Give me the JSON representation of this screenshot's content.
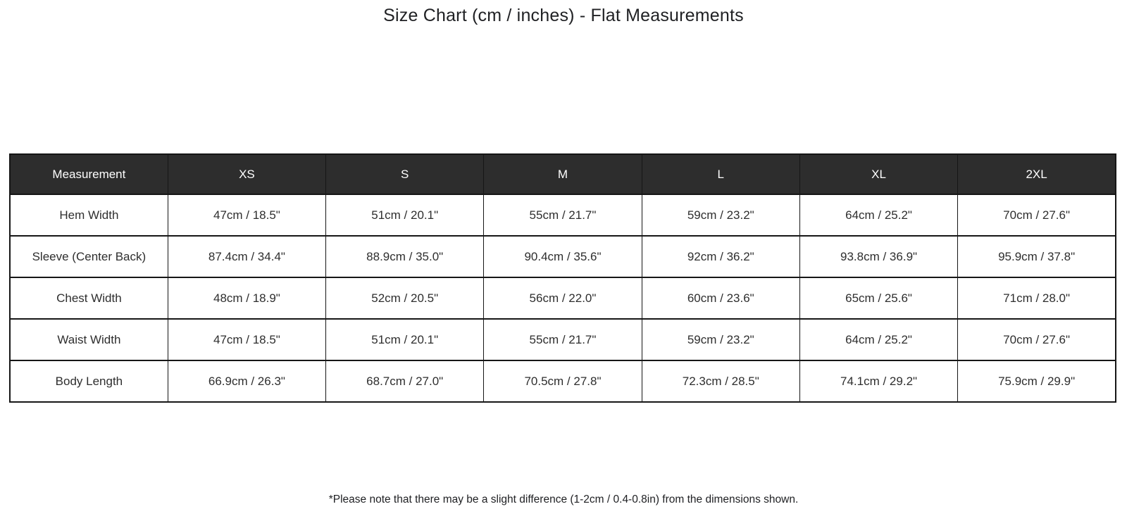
{
  "page": {
    "title": "Size Chart (cm / inches) - Flat Measurements",
    "footnote": "*Please note that there may be a slight difference (1-2cm / 0.4-0.8in) from the dimensions shown."
  },
  "colors": {
    "background": "#ffffff",
    "header_bg": "#2d2d2d",
    "header_text": "#ffffff",
    "border": "#161616",
    "cell_text": "#2e2e2e"
  },
  "chart_data": {
    "type": "table",
    "title": "Size Chart (cm / inches) - Flat Measurements",
    "columns": [
      "Measurement",
      "XS",
      "S",
      "M",
      "L",
      "XL",
      "2XL"
    ],
    "rows": [
      {
        "label": "Hem Width",
        "values": [
          "47cm / 18.5\"",
          "51cm / 20.1\"",
          "55cm / 21.7\"",
          "59cm / 23.2\"",
          "64cm / 25.2\"",
          "70cm / 27.6\""
        ]
      },
      {
        "label": "Sleeve (Center Back)",
        "values": [
          "87.4cm / 34.4\"",
          "88.9cm / 35.0\"",
          "90.4cm / 35.6\"",
          "92cm / 36.2\"",
          "93.8cm / 36.9\"",
          "95.9cm / 37.8\""
        ]
      },
      {
        "label": "Chest Width",
        "values": [
          "48cm / 18.9\"",
          "52cm / 20.5\"",
          "56cm / 22.0\"",
          "60cm / 23.6\"",
          "65cm / 25.6\"",
          "71cm / 28.0\""
        ]
      },
      {
        "label": "Waist Width",
        "values": [
          "47cm / 18.5\"",
          "51cm / 20.1\"",
          "55cm / 21.7\"",
          "59cm / 23.2\"",
          "64cm / 25.2\"",
          "70cm / 27.6\""
        ]
      },
      {
        "label": "Body Length",
        "values": [
          "66.9cm / 26.3\"",
          "68.7cm / 27.0\"",
          "70.5cm / 27.8\"",
          "72.3cm / 28.5\"",
          "74.1cm / 29.2\"",
          "75.9cm / 29.9\""
        ]
      }
    ],
    "footnote": "*Please note that there may be a slight difference (1-2cm / 0.4-0.8in) from the dimensions shown."
  }
}
